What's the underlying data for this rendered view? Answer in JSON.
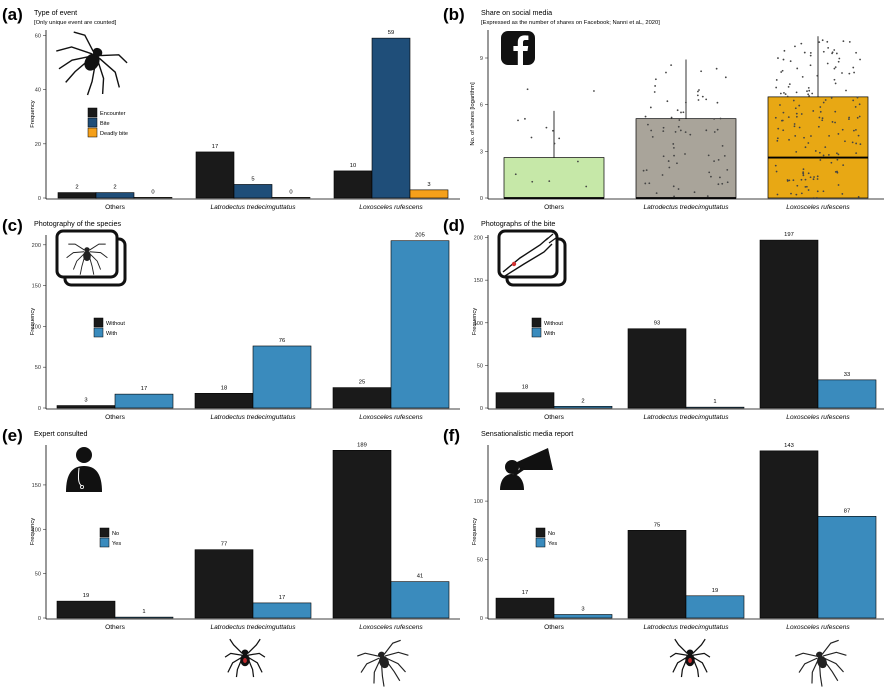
{
  "colors": {
    "black": "#1a1a1a",
    "navy": "#1f4e79",
    "blue": "#3a8bbd",
    "orange": "#f5a01a",
    "green": "#c6e8a8",
    "gray": "#a9a49a",
    "gold": "#e8a814"
  },
  "panels": [
    {
      "label": "(a)",
      "title": "Type of event",
      "subtitle": "[Only unique event are counted]",
      "icon": "spider-icon"
    },
    {
      "label": "(b)",
      "title": "Share on social media",
      "subtitle": "[Expressed as the number of shares on Facebook; Nanni et aL, 2020]",
      "icon": "facebook-icon"
    },
    {
      "label": "(c)",
      "title": "Photography of the species",
      "subtitle": "",
      "icon": "spider-photo-icon"
    },
    {
      "label": "(d)",
      "title": "Photographs of the bite",
      "subtitle": "",
      "icon": "arm-photo-icon"
    },
    {
      "label": "(e)",
      "title": "Expert consulted",
      "subtitle": "",
      "icon": "doctor-icon"
    },
    {
      "label": "(f)",
      "title": "Sensationalistic media report",
      "subtitle": "",
      "icon": "megaphone-icon"
    }
  ],
  "chart_data": [
    {
      "type": "bar",
      "panel": "a",
      "categories": [
        "Others",
        "Latrodectus tredecimguttatus",
        "Loxosceles rufescens"
      ],
      "series": [
        {
          "name": "Encounter",
          "values": [
            2,
            17,
            10
          ]
        },
        {
          "name": "Bite",
          "values": [
            2,
            5,
            59
          ]
        },
        {
          "name": "Deadly bite",
          "values": [
            0,
            0,
            3
          ]
        }
      ],
      "ylabel": "Frequency",
      "ylim": [
        0,
        62
      ],
      "yticks": [
        0,
        20,
        40,
        60
      ],
      "legend": "top-left"
    },
    {
      "type": "box",
      "panel": "b",
      "categories": [
        "Others",
        "Latrodectus tredecimguttatus",
        "Loxosceles rufescens"
      ],
      "boxes": [
        {
          "q1": 0,
          "median": 0,
          "q3": 2.6,
          "whisker_high": 5.6
        },
        {
          "q1": 0,
          "median": 0,
          "q3": 5.1,
          "whisker_high": 8.9
        },
        {
          "q1": 0,
          "median": 2.6,
          "q3": 6.5,
          "whisker_high": 10.4
        }
      ],
      "ylabel": "No. of shares [logarithm]",
      "ylim": [
        0,
        10.8
      ],
      "yticks": [
        0,
        3,
        6,
        9
      ]
    },
    {
      "type": "bar",
      "panel": "c",
      "categories": [
        "Others",
        "Latrodectus tredecimguttatus",
        "Loxosceles rufescens"
      ],
      "series": [
        {
          "name": "Without",
          "values": [
            3,
            18,
            25
          ]
        },
        {
          "name": "With",
          "values": [
            17,
            76,
            205
          ]
        }
      ],
      "ylabel": "Frequency",
      "ylim": [
        0,
        212
      ],
      "yticks": [
        0,
        50,
        100,
        150,
        200
      ],
      "legend": "middle-left"
    },
    {
      "type": "bar",
      "panel": "d",
      "categories": [
        "Others",
        "Latrodectus tredecimguttatus",
        "Loxosceles rufescens"
      ],
      "series": [
        {
          "name": "Without",
          "values": [
            18,
            93,
            197
          ]
        },
        {
          "name": "With",
          "values": [
            2,
            1,
            33
          ]
        }
      ],
      "ylabel": "Frequency",
      "ylim": [
        0,
        203
      ],
      "yticks": [
        0,
        50,
        100,
        150,
        200
      ],
      "legend": "middle-left"
    },
    {
      "type": "bar",
      "panel": "e",
      "categories": [
        "Others",
        "Latrodectus tredecimguttatus",
        "Loxosceles rufescens"
      ],
      "series": [
        {
          "name": "No",
          "values": [
            19,
            77,
            189
          ]
        },
        {
          "name": "Yes",
          "values": [
            1,
            17,
            41
          ]
        }
      ],
      "ylabel": "Frequency",
      "ylim": [
        0,
        195
      ],
      "yticks": [
        0,
        50,
        100,
        150
      ],
      "legend": "middle-left"
    },
    {
      "type": "bar",
      "panel": "f",
      "categories": [
        "Others",
        "Latrodectus tredecimguttatus",
        "Loxosceles rufescens"
      ],
      "series": [
        {
          "name": "No",
          "values": [
            17,
            75,
            143
          ]
        },
        {
          "name": "Yes",
          "values": [
            3,
            19,
            87
          ]
        }
      ],
      "ylabel": "Frequency",
      "ylim": [
        0,
        148
      ],
      "yticks": [
        0,
        50,
        100
      ],
      "legend": "middle-left"
    }
  ]
}
